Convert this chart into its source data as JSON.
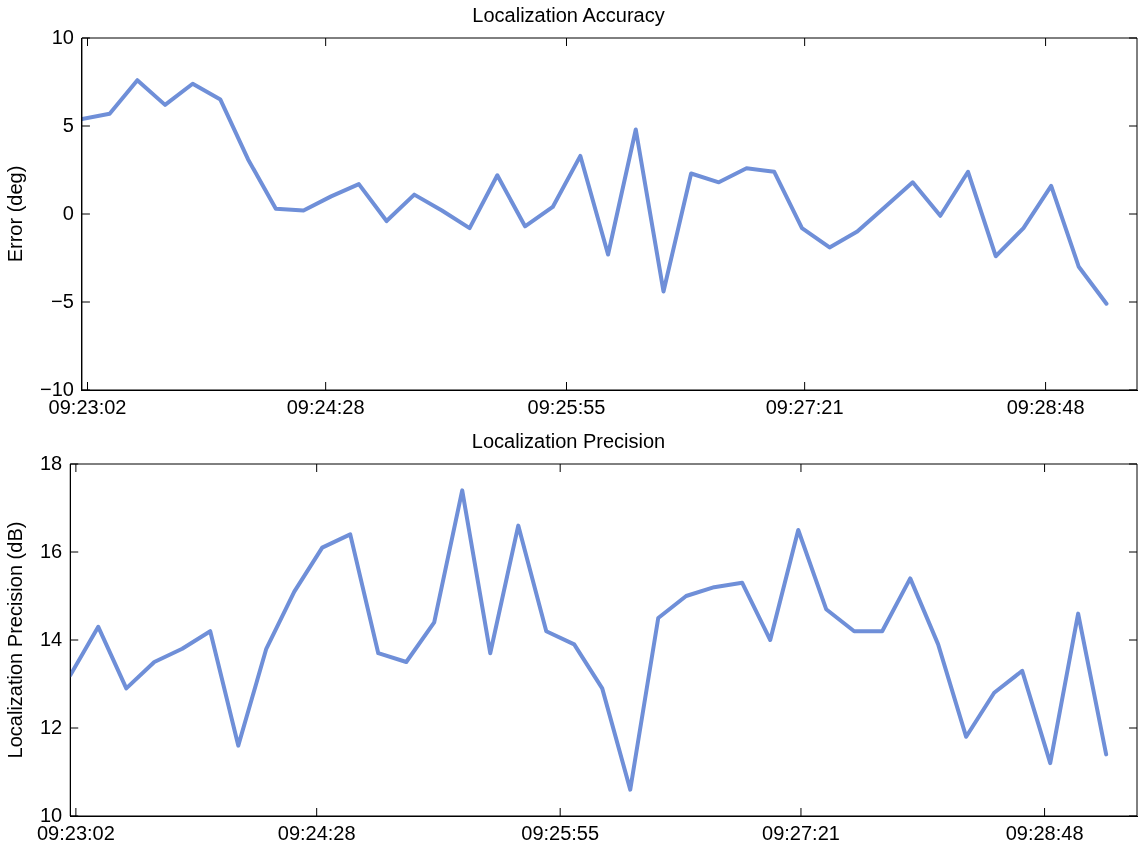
{
  "chart_data": [
    {
      "type": "line",
      "title": "Localization Accuracy",
      "ylabel": "Error (deg)",
      "x": [
        9.38333,
        9.38611,
        9.38889,
        9.39167,
        9.39444,
        9.39722,
        9.4,
        9.40278,
        9.40556,
        9.40833,
        9.41111,
        9.41389,
        9.41667,
        9.41944,
        9.42222,
        9.425,
        9.42778,
        9.43056,
        9.43333,
        9.43611,
        9.43889,
        9.44167,
        9.44444,
        9.44722,
        9.45,
        9.45278,
        9.45556,
        9.45833,
        9.46111,
        9.46389,
        9.46667,
        9.46944,
        9.47222,
        9.475,
        9.47778,
        9.48056,
        9.48333,
        9.48611
      ],
      "series": [
        {
          "color": "#6f8fd8",
          "values": [
            5.4,
            5.7,
            7.6,
            6.2,
            7.4,
            6.5,
            3.1,
            0.3,
            0.2,
            1.0,
            1.7,
            -0.4,
            1.1,
            0.2,
            -0.8,
            2.2,
            -0.7,
            0.4,
            3.3,
            -2.3,
            4.8,
            -4.4,
            2.3,
            1.8,
            2.6,
            2.4,
            -0.8,
            -1.9,
            -1.0,
            0.4,
            1.8,
            -0.1,
            2.4,
            -2.4,
            -0.8,
            1.6,
            -3.0,
            -5.1
          ]
        }
      ],
      "xlim": [
        9.38333,
        9.48917
      ],
      "xticks": [
        {
          "value": 9.38389,
          "label": "09:23:02"
        },
        {
          "value": 9.40778,
          "label": "09:24:28"
        },
        {
          "value": 9.43194,
          "label": "09:25:55"
        },
        {
          "value": 9.45583,
          "label": "09:27:21"
        },
        {
          "value": 9.48,
          "label": "09:28:48"
        }
      ],
      "ylim": [
        -10,
        10
      ],
      "yticks": [
        -10,
        -5,
        0,
        5,
        10
      ],
      "grid": false,
      "legend": false,
      "marker": "none",
      "line_style": "solid"
    },
    {
      "type": "line",
      "title": "Localization Precision",
      "ylabel": "Localization Precision (dB)",
      "x": [
        9.38333,
        9.38611,
        9.38889,
        9.39167,
        9.39444,
        9.39722,
        9.4,
        9.40278,
        9.40556,
        9.40833,
        9.41111,
        9.41389,
        9.41667,
        9.41944,
        9.42222,
        9.425,
        9.42778,
        9.43056,
        9.43333,
        9.43611,
        9.43889,
        9.44167,
        9.44444,
        9.44722,
        9.45,
        9.45278,
        9.45556,
        9.45833,
        9.46111,
        9.46389,
        9.46667,
        9.46944,
        9.47222,
        9.475,
        9.47778,
        9.48056,
        9.48333,
        9.48611
      ],
      "series": [
        {
          "color": "#6f8fd8",
          "values": [
            13.2,
            14.3,
            12.9,
            13.5,
            13.8,
            14.2,
            11.6,
            13.8,
            15.1,
            16.1,
            16.4,
            13.7,
            13.5,
            14.4,
            17.4,
            13.7,
            16.6,
            14.2,
            13.9,
            12.9,
            10.6,
            14.5,
            15.0,
            15.2,
            15.3,
            14.0,
            16.5,
            14.7,
            14.2,
            14.2,
            15.4,
            13.9,
            11.8,
            12.8,
            13.3,
            11.2,
            14.6,
            11.4
          ]
        }
      ],
      "xlim": [
        9.38333,
        9.48917
      ],
      "xticks": [
        {
          "value": 9.38389,
          "label": "09:23:02"
        },
        {
          "value": 9.40778,
          "label": "09:24:28"
        },
        {
          "value": 9.43194,
          "label": "09:25:55"
        },
        {
          "value": 9.45583,
          "label": "09:27:21"
        },
        {
          "value": 9.48,
          "label": "09:28:48"
        }
      ],
      "ylim": [
        10,
        18
      ],
      "yticks": [
        10,
        12,
        14,
        16,
        18
      ],
      "grid": false,
      "legend": false,
      "marker": "none",
      "line_style": "solid"
    }
  ]
}
